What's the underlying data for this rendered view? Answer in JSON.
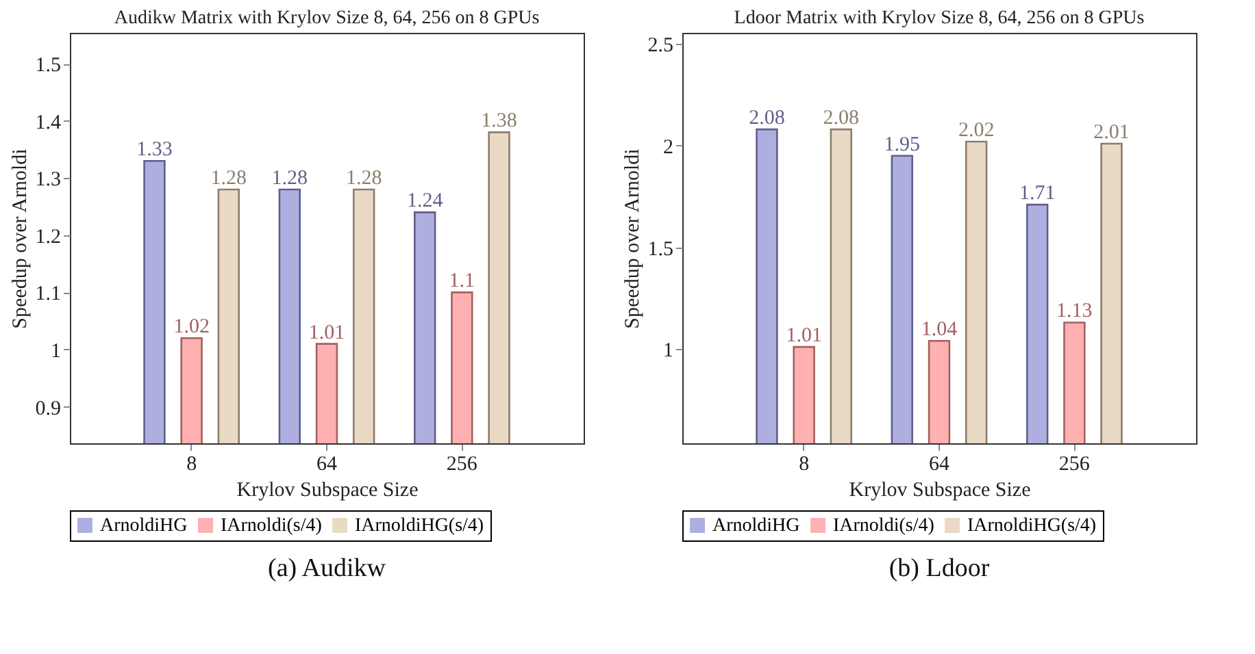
{
  "chart_data": [
    {
      "type": "bar",
      "title": "Audikw Matrix with Krylov Size 8, 64, 256 on 8 GPUs",
      "xlabel": "Krylov Subspace Size",
      "ylabel": "Speedup over Arnoldi",
      "categories": [
        "8",
        "64",
        "256"
      ],
      "series": [
        {
          "name": "ArnoldiHG",
          "color": "#aeaee0",
          "values": [
            1.33,
            1.28,
            1.24
          ]
        },
        {
          "name": "IArnoldi(s/4)",
          "color": "#ffb0b0",
          "values": [
            1.02,
            1.01,
            1.1
          ]
        },
        {
          "name": "IArnoldiHG(s/4)",
          "color": "#ead9c4",
          "values": [
            1.28,
            1.28,
            1.38
          ]
        }
      ],
      "ylim": [
        0.836,
        1.554
      ],
      "yticks": [
        0.9,
        1,
        1.1,
        1.2,
        1.3,
        1.4,
        1.5
      ],
      "data_labels": true,
      "legend": "bottom",
      "grid": false,
      "annotations": [
        "(a) Audikw"
      ]
    },
    {
      "type": "bar",
      "title": "Ldoor Matrix with Krylov Size 8, 64, 256 on 8 GPUs",
      "xlabel": "Krylov Subspace Size",
      "ylabel": "Speedup over Arnoldi",
      "categories": [
        "8",
        "64",
        "256"
      ],
      "series": [
        {
          "name": "ArnoldiHG",
          "color": "#aeaee0",
          "values": [
            2.08,
            1.95,
            1.71
          ]
        },
        {
          "name": "IArnoldi(s/4)",
          "color": "#ffb0b0",
          "values": [
            1.01,
            1.04,
            1.13
          ]
        },
        {
          "name": "IArnoldiHG(s/4)",
          "color": "#ead9c4",
          "values": [
            2.08,
            2.02,
            2.01
          ]
        }
      ],
      "ylim": [
        0.536,
        2.555
      ],
      "yticks": [
        1,
        1.5,
        2,
        2.5
      ],
      "data_labels": true,
      "legend": "bottom",
      "grid": false,
      "annotations": [
        "(b) Ldoor"
      ]
    }
  ]
}
